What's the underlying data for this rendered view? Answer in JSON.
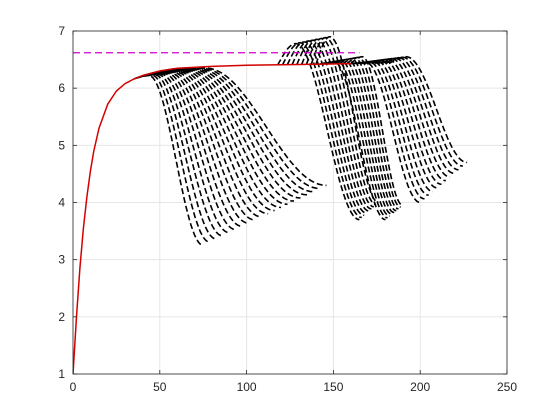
{
  "chart_data": {
    "type": "line",
    "title": "",
    "xlabel": "",
    "ylabel": "",
    "xlim": [
      0,
      250
    ],
    "ylim": [
      1,
      7
    ],
    "xticks": [
      0,
      50,
      100,
      150,
      200,
      250
    ],
    "yticks": [
      1,
      2,
      3,
      4,
      5,
      6,
      7
    ],
    "grid": true,
    "legend": "none",
    "colors": {
      "main_curve": "#d40000",
      "reference_line": "#cc00cc",
      "family": "#000000",
      "grid": "#e6e6e6",
      "axes": "#262626"
    },
    "series": [
      {
        "style": "solid-red",
        "x": [
          0,
          2,
          4,
          6,
          8,
          10,
          12,
          15,
          20,
          25,
          30,
          35,
          40,
          50,
          60,
          80,
          100,
          120,
          140,
          160
        ],
        "y": [
          1.0,
          2.0,
          2.85,
          3.55,
          4.1,
          4.55,
          4.9,
          5.3,
          5.72,
          5.95,
          6.08,
          6.16,
          6.22,
          6.3,
          6.35,
          6.38,
          6.4,
          6.41,
          6.42,
          6.43
        ]
      },
      {
        "style": "dashed-magenta",
        "x": [
          0,
          165
        ],
        "y": [
          6.62,
          6.62
        ]
      }
    ],
    "families": [
      {
        "style": "dashed-black",
        "count": 20,
        "branch_x_start": 35,
        "branch_x_end": 57,
        "peak_y_start": 6.22,
        "peak_y_end": 6.35,
        "end_x_start": 75,
        "end_x_end": 146,
        "end_y_start": 3.25,
        "end_y_end": 4.3
      },
      {
        "style": "dashed-black",
        "count": 9,
        "branch_x_start": 118,
        "branch_x_end": 140,
        "peak_y_start": 6.78,
        "peak_y_end": 6.9,
        "end_x_start": 165,
        "end_x_end": 176,
        "end_y_start": 3.7,
        "end_y_end": 4.0
      },
      {
        "style": "dashed-black",
        "count": 9,
        "branch_x_start": 142,
        "branch_x_end": 160,
        "peak_y_start": 6.46,
        "peak_y_end": 6.55,
        "end_x_start": 180,
        "end_x_end": 190,
        "end_y_start": 3.7,
        "end_y_end": 3.95
      },
      {
        "style": "dashed-black",
        "count": 12,
        "branch_x_start": 160,
        "branch_x_end": 182,
        "peak_y_start": 6.45,
        "peak_y_end": 6.55,
        "end_x_start": 200,
        "end_x_end": 227,
        "end_y_start": 4.0,
        "end_y_end": 4.7
      }
    ]
  }
}
